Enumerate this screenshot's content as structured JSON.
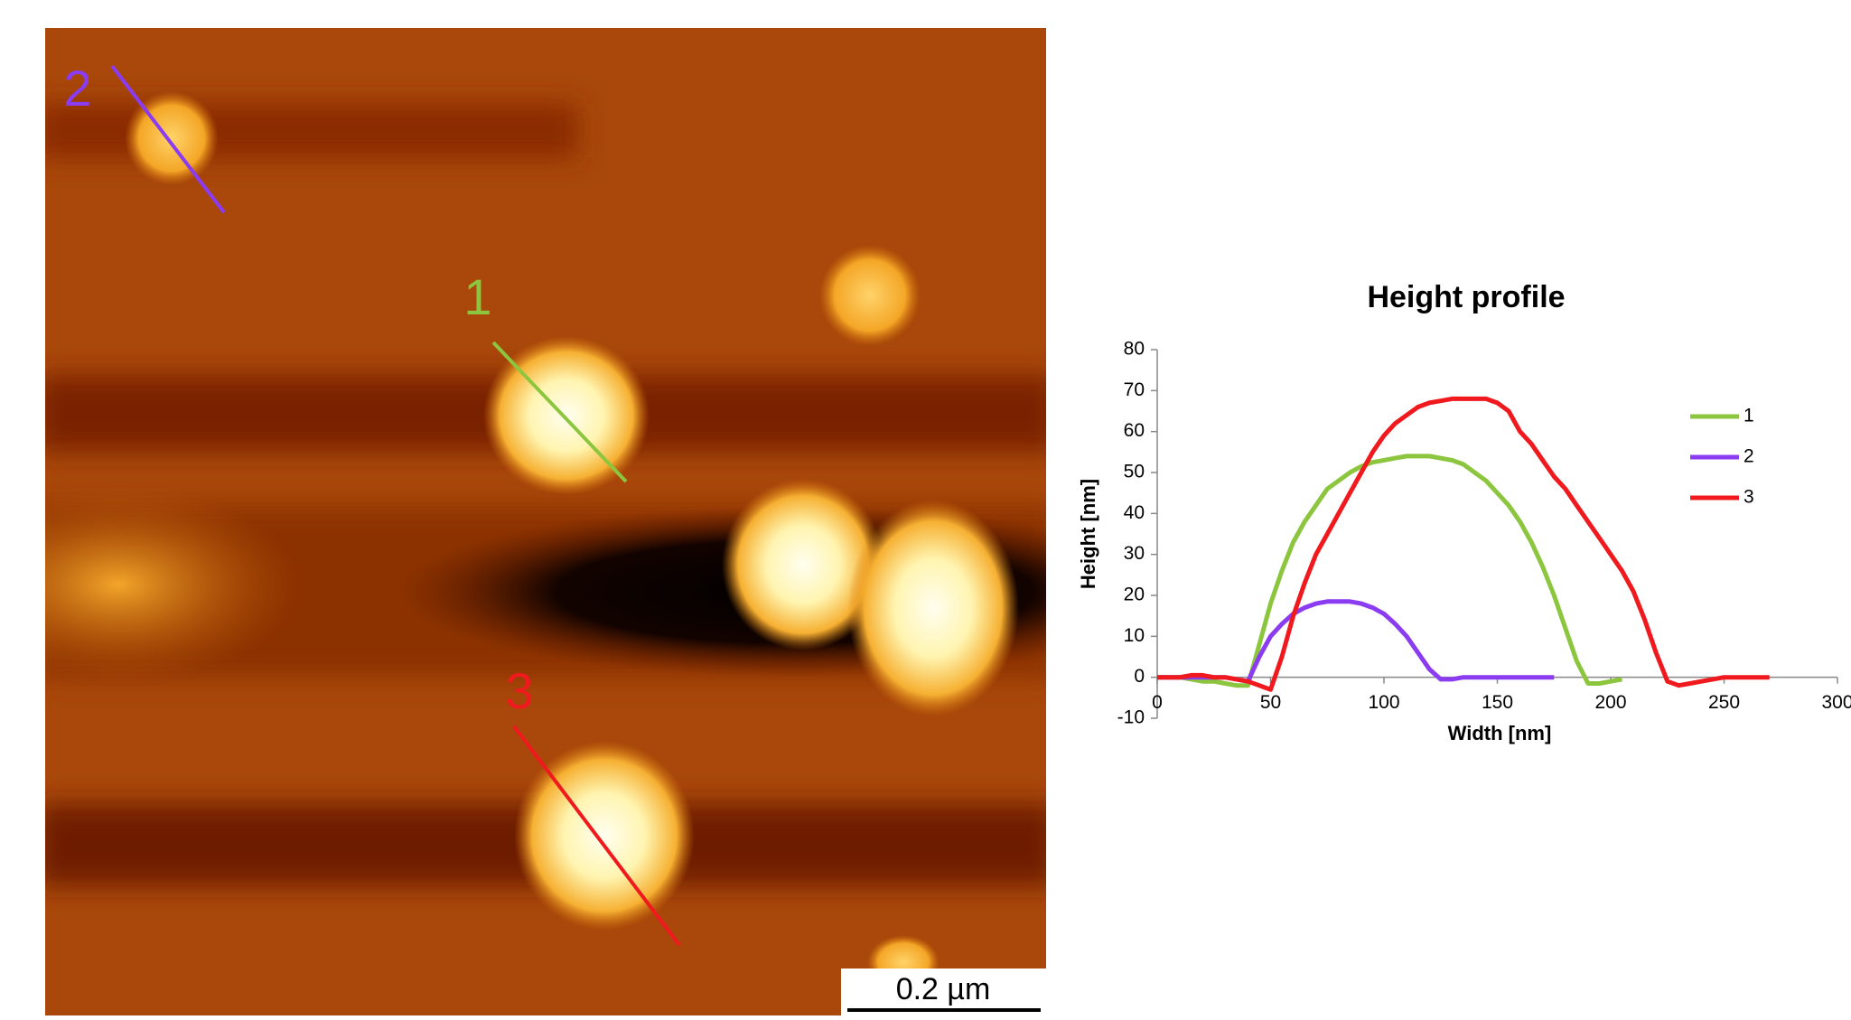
{
  "image": {
    "profile_labels": [
      "2",
      "1",
      "3"
    ],
    "scale_bar": "0.2 µm"
  },
  "chart_data": {
    "type": "line",
    "title": "Height profile",
    "x_label": "Width [nm]",
    "y_label": "Height [nm]",
    "x": [
      0,
      5,
      10,
      15,
      20,
      25,
      30,
      35,
      40,
      45,
      50,
      55,
      60,
      65,
      70,
      75,
      80,
      85,
      90,
      95,
      100,
      105,
      110,
      115,
      120,
      125,
      130,
      135,
      140,
      145,
      150,
      155,
      160,
      165,
      170,
      175,
      180,
      185,
      190,
      195,
      200,
      205,
      210,
      215,
      220,
      225,
      230,
      235,
      240,
      245,
      250,
      255,
      260,
      265,
      270
    ],
    "series": [
      {
        "name": "1",
        "color": "#8cc63f",
        "values": [
          0,
          0,
          0,
          -0.5,
          -1,
          -1,
          -1.5,
          -2,
          -2,
          8,
          18,
          26,
          33,
          38,
          42,
          46,
          48,
          50,
          51.5,
          52.5,
          53,
          53.5,
          54,
          54,
          54,
          53.5,
          53,
          52,
          50,
          48,
          45,
          42,
          38,
          33,
          27,
          20,
          12,
          4,
          -1.5,
          -1.5,
          -1,
          -0.5,
          null,
          null,
          null,
          null,
          null,
          null,
          null,
          null,
          null,
          null,
          null,
          null,
          null
        ]
      },
      {
        "name": "2",
        "color": "#8b3cf0",
        "values": [
          0,
          0,
          0,
          0,
          0,
          0,
          0,
          -0.5,
          -1,
          5,
          10,
          13,
          15.5,
          17,
          18,
          18.5,
          18.5,
          18.5,
          18,
          17,
          15.5,
          13,
          10,
          6,
          2,
          -0.5,
          -0.5,
          0,
          0,
          0,
          0,
          0,
          0,
          0,
          0,
          0,
          null,
          null,
          null,
          null,
          null,
          null,
          null,
          null,
          null,
          null,
          null,
          null,
          null,
          null,
          null,
          null,
          null,
          null,
          null
        ]
      },
      {
        "name": "3",
        "color": "#f0191e",
        "values": [
          0,
          0,
          0,
          0.5,
          0.5,
          0,
          0,
          -0.5,
          -1,
          -2,
          -3,
          5,
          15,
          23,
          30,
          35,
          40,
          45,
          50,
          55,
          59,
          62,
          64,
          66,
          67,
          67.5,
          68,
          68,
          68,
          68,
          67,
          65,
          60,
          57,
          53,
          49,
          46,
          42,
          38,
          34,
          30,
          26,
          21,
          14,
          6,
          -1,
          -2,
          -1.5,
          -1,
          -0.5,
          0,
          0,
          0,
          0,
          0
        ]
      }
    ],
    "xlim": [
      0,
      300
    ],
    "xticks": [
      0,
      50,
      100,
      150,
      200,
      250,
      300
    ],
    "ylim": [
      -10,
      80
    ],
    "yticks": [
      -10,
      0,
      10,
      20,
      30,
      40,
      50,
      60,
      70,
      80
    ],
    "legend": "right"
  }
}
